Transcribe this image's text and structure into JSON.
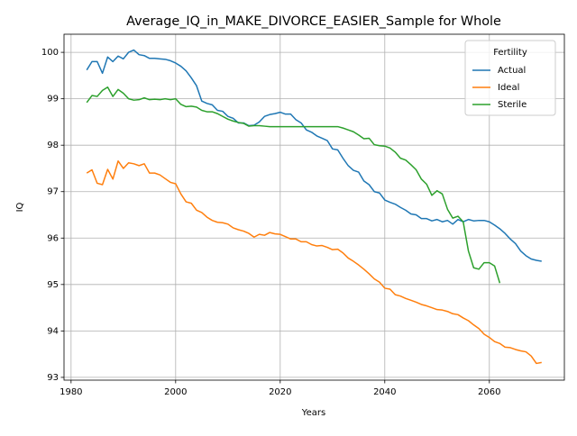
{
  "chart_data": {
    "type": "line",
    "title": "Average_IQ_in_MAKE_DIVORCE_EASIER_Sample for Whole",
    "xlabel": "Years",
    "ylabel": "IQ",
    "x": [
      1983,
      1984,
      1985,
      1986,
      1987,
      1988,
      1989,
      1990,
      1991,
      1992,
      1993,
      1994,
      1995,
      1996,
      1997,
      1998,
      1999,
      2000,
      2001,
      2002,
      2003,
      2004,
      2005,
      2006,
      2007,
      2008,
      2009,
      2010,
      2011,
      2012,
      2013,
      2014,
      2015,
      2016,
      2017,
      2018,
      2019,
      2020,
      2021,
      2022,
      2023,
      2024,
      2025,
      2026,
      2027,
      2028,
      2029,
      2030,
      2031,
      2032,
      2033,
      2034,
      2035,
      2036,
      2037,
      2038,
      2039,
      2040,
      2041,
      2042,
      2043,
      2044,
      2045,
      2046,
      2047,
      2048,
      2049,
      2050,
      2051,
      2052,
      2053,
      2054,
      2055,
      2056,
      2057,
      2058,
      2059,
      2060,
      2061,
      2062,
      2063,
      2064,
      2065,
      2066,
      2067,
      2068,
      2069,
      2070
    ],
    "series": [
      {
        "name": "Actual",
        "color": "#1f77b4",
        "values": [
          99.62,
          99.8,
          99.8,
          99.55,
          99.9,
          99.8,
          99.92,
          99.86,
          100.0,
          100.05,
          99.95,
          99.93,
          99.87,
          99.87,
          99.86,
          99.85,
          99.82,
          99.77,
          99.7,
          99.6,
          99.45,
          99.28,
          98.95,
          98.9,
          98.87,
          98.75,
          98.73,
          98.62,
          98.58,
          98.48,
          98.48,
          98.42,
          98.43,
          98.5,
          98.62,
          98.66,
          98.68,
          98.71,
          98.67,
          98.67,
          98.55,
          98.48,
          98.33,
          98.28,
          98.2,
          98.15,
          98.1,
          97.92,
          97.9,
          97.72,
          97.56,
          97.46,
          97.42,
          97.23,
          97.15,
          97.0,
          96.97,
          96.82,
          96.77,
          96.73,
          96.66,
          96.6,
          96.52,
          96.5,
          96.42,
          96.42,
          96.37,
          96.4,
          96.35,
          96.38,
          96.3,
          96.4,
          96.35,
          96.4,
          96.37,
          96.38,
          96.38,
          96.35,
          96.28,
          96.2,
          96.1,
          95.98,
          95.88,
          95.72,
          95.62,
          95.55,
          95.52,
          95.5
        ]
      },
      {
        "name": "Ideal",
        "color": "#ff7f0e",
        "values": [
          97.4,
          97.47,
          97.18,
          97.15,
          97.48,
          97.27,
          97.66,
          97.5,
          97.62,
          97.6,
          97.56,
          97.6,
          97.4,
          97.4,
          97.36,
          97.28,
          97.2,
          97.17,
          96.95,
          96.78,
          96.75,
          96.6,
          96.55,
          96.45,
          96.38,
          96.34,
          96.33,
          96.3,
          96.22,
          96.18,
          96.15,
          96.1,
          96.02,
          96.08,
          96.06,
          96.12,
          96.09,
          96.08,
          96.03,
          95.98,
          95.98,
          95.92,
          95.92,
          95.86,
          95.83,
          95.84,
          95.8,
          95.75,
          95.76,
          95.68,
          95.57,
          95.5,
          95.42,
          95.33,
          95.23,
          95.12,
          95.05,
          94.92,
          94.9,
          94.78,
          94.75,
          94.7,
          94.66,
          94.62,
          94.57,
          94.54,
          94.5,
          94.46,
          94.45,
          94.42,
          94.37,
          94.35,
          94.28,
          94.22,
          94.13,
          94.05,
          93.93,
          93.86,
          93.77,
          93.73,
          93.65,
          93.64,
          93.6,
          93.57,
          93.55,
          93.46,
          93.3,
          93.32
        ]
      },
      {
        "name": "Sterile",
        "color": "#2ca02c",
        "values": [
          98.92,
          99.07,
          99.05,
          99.18,
          99.25,
          99.05,
          99.2,
          99.12,
          99.0,
          98.97,
          98.98,
          99.02,
          98.98,
          98.99,
          98.98,
          99.0,
          98.98,
          99.0,
          98.88,
          98.83,
          98.84,
          98.82,
          98.75,
          98.72,
          98.72,
          98.68,
          98.62,
          98.56,
          98.52,
          98.49,
          98.47,
          98.41,
          98.42,
          98.42,
          98.41,
          98.4,
          98.4,
          98.4,
          98.4,
          98.4,
          98.4,
          98.4,
          98.4,
          98.4,
          98.4,
          98.4,
          98.4,
          98.4,
          98.4,
          98.37,
          98.33,
          98.29,
          98.22,
          98.14,
          98.15,
          98.01,
          97.99,
          97.98,
          97.94,
          97.85,
          97.72,
          97.68,
          97.58,
          97.47,
          97.27,
          97.16,
          96.92,
          97.02,
          96.95,
          96.62,
          96.43,
          96.47,
          96.35,
          95.72,
          95.36,
          95.33,
          95.47,
          95.47,
          95.4,
          95.03,
          null,
          null,
          null,
          null,
          null,
          null,
          null,
          null
        ]
      }
    ],
    "xlim": [
      1978.65,
      2074.35
    ],
    "xticks": [
      1980,
      2000,
      2020,
      2040,
      2060
    ],
    "ylim": [
      92.94,
      100.39
    ],
    "yticks": [
      93,
      94,
      95,
      96,
      97,
      98,
      99,
      100
    ],
    "grid": true,
    "legend_title": "Fertility",
    "legend_position": "upper right"
  }
}
